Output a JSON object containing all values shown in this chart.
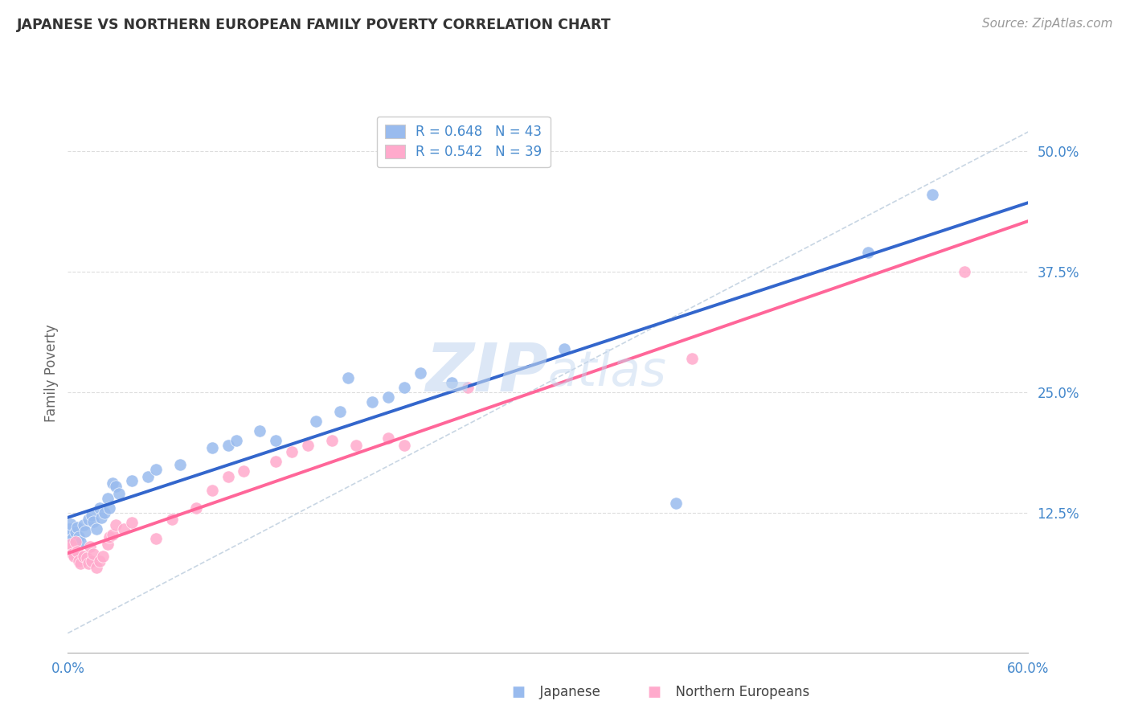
{
  "title": "JAPANESE VS NORTHERN EUROPEAN FAMILY POVERTY CORRELATION CHART",
  "source": "Source: ZipAtlas.com",
  "ylabel": "Family Poverty",
  "xlim": [
    0.0,
    0.6
  ],
  "ylim": [
    -0.02,
    0.56
  ],
  "ytick_values": [
    0.125,
    0.25,
    0.375,
    0.5
  ],
  "ytick_labels": [
    "12.5%",
    "25.0%",
    "37.5%",
    "50.0%"
  ],
  "xtick_values": [
    0.0,
    0.1,
    0.2,
    0.3,
    0.4,
    0.5,
    0.6
  ],
  "xtick_labels": [
    "0.0%",
    "",
    "",
    "",
    "",
    "",
    "60.0%"
  ],
  "legend_r1": "R = 0.648   N = 43",
  "legend_r2": "R = 0.542   N = 39",
  "japanese_color": "#99bbee",
  "northern_color": "#ffaacc",
  "regression_japanese_color": "#3366cc",
  "regression_northern_color": "#ff6699",
  "dashed_line_color": "#bbccdd",
  "tick_color": "#4488cc",
  "watermark_text": "ZIPatlas",
  "japanese_points": [
    [
      0.001,
      0.102
    ],
    [
      0.001,
      0.108
    ],
    [
      0.002,
      0.113
    ],
    [
      0.003,
      0.098
    ],
    [
      0.005,
      0.105
    ],
    [
      0.006,
      0.11
    ],
    [
      0.007,
      0.1
    ],
    [
      0.008,
      0.095
    ],
    [
      0.01,
      0.112
    ],
    [
      0.011,
      0.106
    ],
    [
      0.013,
      0.118
    ],
    [
      0.015,
      0.122
    ],
    [
      0.016,
      0.116
    ],
    [
      0.018,
      0.108
    ],
    [
      0.02,
      0.13
    ],
    [
      0.021,
      0.12
    ],
    [
      0.023,
      0.125
    ],
    [
      0.025,
      0.14
    ],
    [
      0.026,
      0.13
    ],
    [
      0.028,
      0.156
    ],
    [
      0.03,
      0.152
    ],
    [
      0.032,
      0.145
    ],
    [
      0.04,
      0.158
    ],
    [
      0.05,
      0.162
    ],
    [
      0.055,
      0.17
    ],
    [
      0.07,
      0.175
    ],
    [
      0.09,
      0.192
    ],
    [
      0.1,
      0.195
    ],
    [
      0.105,
      0.2
    ],
    [
      0.12,
      0.21
    ],
    [
      0.13,
      0.2
    ],
    [
      0.155,
      0.22
    ],
    [
      0.17,
      0.23
    ],
    [
      0.175,
      0.265
    ],
    [
      0.19,
      0.24
    ],
    [
      0.2,
      0.245
    ],
    [
      0.21,
      0.255
    ],
    [
      0.22,
      0.27
    ],
    [
      0.24,
      0.26
    ],
    [
      0.31,
      0.295
    ],
    [
      0.38,
      0.135
    ],
    [
      0.5,
      0.395
    ],
    [
      0.54,
      0.455
    ]
  ],
  "northern_points": [
    [
      0.001,
      0.088
    ],
    [
      0.002,
      0.092
    ],
    [
      0.003,
      0.082
    ],
    [
      0.004,
      0.08
    ],
    [
      0.005,
      0.095
    ],
    [
      0.006,
      0.085
    ],
    [
      0.007,
      0.075
    ],
    [
      0.008,
      0.072
    ],
    [
      0.01,
      0.08
    ],
    [
      0.012,
      0.078
    ],
    [
      0.013,
      0.072
    ],
    [
      0.014,
      0.09
    ],
    [
      0.015,
      0.075
    ],
    [
      0.016,
      0.082
    ],
    [
      0.018,
      0.068
    ],
    [
      0.02,
      0.075
    ],
    [
      0.022,
      0.08
    ],
    [
      0.025,
      0.092
    ],
    [
      0.026,
      0.1
    ],
    [
      0.028,
      0.102
    ],
    [
      0.03,
      0.112
    ],
    [
      0.035,
      0.108
    ],
    [
      0.04,
      0.115
    ],
    [
      0.055,
      0.098
    ],
    [
      0.065,
      0.118
    ],
    [
      0.08,
      0.13
    ],
    [
      0.09,
      0.148
    ],
    [
      0.1,
      0.162
    ],
    [
      0.11,
      0.168
    ],
    [
      0.13,
      0.178
    ],
    [
      0.14,
      0.188
    ],
    [
      0.15,
      0.195
    ],
    [
      0.165,
      0.2
    ],
    [
      0.18,
      0.195
    ],
    [
      0.2,
      0.202
    ],
    [
      0.21,
      0.195
    ],
    [
      0.25,
      0.255
    ],
    [
      0.39,
      0.285
    ],
    [
      0.56,
      0.375
    ]
  ]
}
